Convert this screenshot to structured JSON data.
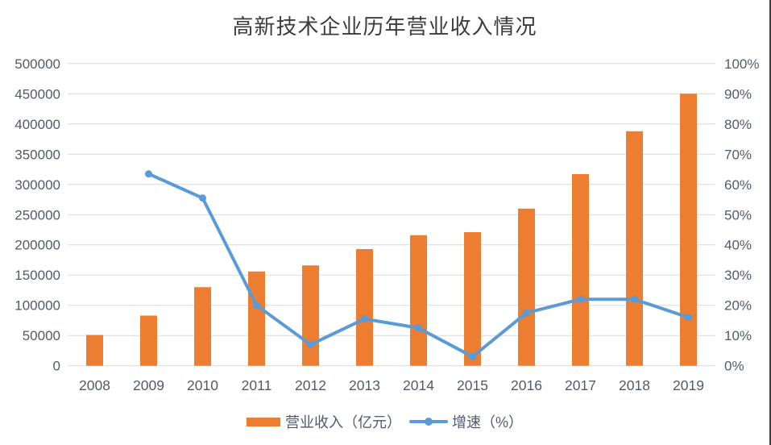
{
  "title": "高新技术企业历年营业收入情况",
  "legend": {
    "revenue_label": "营业收入（亿元）",
    "growth_label": "增速（%）"
  },
  "colors": {
    "bar": "#ED7D31",
    "line": "#5B9BD5",
    "gridline": "#D9D9D9",
    "axis_text": "#4F5B6B",
    "title_text": "#3D3D3D",
    "border": "#3F3F3F",
    "background": "#FFFFFF"
  },
  "axes": {
    "left_tick_labels": [
      "0",
      "50000",
      "100000",
      "150000",
      "200000",
      "250000",
      "300000",
      "350000",
      "400000",
      "450000",
      "500000"
    ],
    "right_tick_labels": [
      "0%",
      "10%",
      "20%",
      "30%",
      "40%",
      "50%",
      "60%",
      "70%",
      "80%",
      "90%",
      "100%"
    ]
  },
  "chart_data": {
    "type": "bar",
    "subtype": "bar-line-combo",
    "title": "高新技术企业历年营业收入情况",
    "categories": [
      "2008",
      "2009",
      "2010",
      "2011",
      "2012",
      "2013",
      "2014",
      "2015",
      "2016",
      "2017",
      "2018",
      "2019"
    ],
    "series": [
      {
        "name": "营业收入（亿元）",
        "type": "bar",
        "axis": "left",
        "color": "#ED7D31",
        "values": [
          51000,
          83000,
          130000,
          156000,
          166000,
          193000,
          216000,
          221000,
          260000,
          317000,
          388000,
          450000
        ]
      },
      {
        "name": "增速（%）",
        "type": "line",
        "axis": "right",
        "color": "#5B9BD5",
        "values": [
          null,
          63.5,
          55.5,
          20,
          7,
          15.5,
          12.5,
          3,
          17.5,
          22,
          22,
          16
        ]
      }
    ],
    "xlabel": "",
    "ylabel_left": "营业收入（亿元）",
    "ylabel_right": "增速（%）",
    "left_ylim": [
      0,
      500000
    ],
    "right_ylim": [
      0,
      100
    ],
    "left_tick_step": 50000,
    "right_tick_step": 10,
    "grid": true,
    "legend_position": "bottom"
  }
}
